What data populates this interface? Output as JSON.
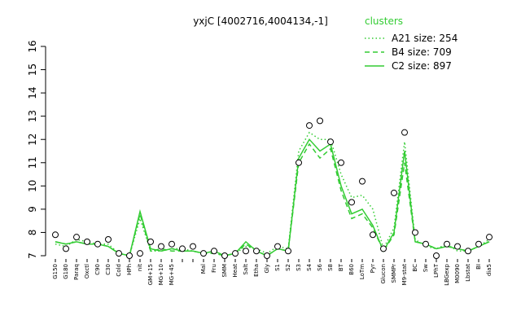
{
  "chart_data": {
    "type": "line",
    "title": "yxjC [4002716,4004134,-1]",
    "legend_title": "clusters",
    "legend_position": "top-right",
    "categories": [
      "G150",
      "G180",
      "Paraq",
      "Oxctl",
      "C90",
      "C30",
      "Cold",
      "HPh",
      "nit",
      "GM+15",
      "MG+10",
      "MG+45",
      null,
      null,
      "Mal",
      "Fru",
      "SMM",
      "Heat",
      "Salt",
      "Etha",
      "Gly",
      "S1",
      "S2",
      "S3",
      "S4",
      "S6",
      "S8",
      "BT",
      "B60",
      "LoTm",
      "Pyr",
      "Glucon",
      "SMMPr",
      "M9-stat",
      "BC",
      "Sw",
      "LPhT",
      "LBGexp",
      "M0090",
      "Lbstat",
      "BI",
      "dia5"
    ],
    "series": [
      {
        "name": "A21 size: 254",
        "color": "#33cc33",
        "dash": "dotted",
        "values": [
          7.5,
          7.4,
          7.7,
          7.6,
          7.5,
          7.5,
          7.1,
          7.0,
          8.6,
          7.2,
          7.2,
          7.3,
          7.3,
          7.2,
          7.1,
          7.2,
          7.0,
          7.1,
          7.4,
          7.3,
          7.1,
          7.4,
          7.3,
          11.5,
          12.3,
          12.0,
          12.0,
          10.5,
          9.5,
          9.6,
          9.0,
          7.3,
          8.2,
          11.9,
          7.7,
          7.4,
          7.3,
          7.5,
          7.2,
          7.2,
          7.4,
          7.7
        ]
      },
      {
        "name": "B4 size: 709",
        "color": "#33cc33",
        "dash": "dashed",
        "values": [
          7.6,
          7.5,
          7.6,
          7.5,
          7.5,
          7.4,
          7.1,
          7.0,
          8.8,
          7.2,
          7.3,
          7.2,
          7.2,
          7.2,
          7.1,
          7.1,
          7.0,
          7.1,
          7.5,
          7.2,
          7.0,
          7.3,
          7.2,
          11.0,
          11.8,
          11.2,
          11.6,
          9.8,
          8.6,
          8.8,
          8.2,
          7.2,
          7.9,
          11.0,
          7.6,
          7.5,
          7.3,
          7.4,
          7.3,
          7.2,
          7.4,
          7.6
        ]
      },
      {
        "name": "C2 size: 897",
        "color": "#33cc33",
        "dash": "solid",
        "values": [
          7.6,
          7.5,
          7.6,
          7.5,
          7.5,
          7.4,
          7.1,
          7.0,
          8.9,
          7.3,
          7.2,
          7.3,
          7.2,
          7.2,
          7.1,
          7.2,
          7.0,
          7.1,
          7.6,
          7.2,
          7.0,
          7.3,
          7.2,
          11.2,
          12.0,
          11.5,
          11.8,
          10.0,
          8.8,
          9.0,
          8.3,
          7.2,
          8.0,
          11.5,
          7.6,
          7.5,
          7.3,
          7.4,
          7.3,
          7.2,
          7.4,
          7.6
        ]
      }
    ],
    "points": [
      7.9,
      7.3,
      7.8,
      7.6,
      7.5,
      7.7,
      7.1,
      7.0,
      7.1,
      7.6,
      7.4,
      7.5,
      7.3,
      7.4,
      7.1,
      7.2,
      7.0,
      7.1,
      7.2,
      7.2,
      7.0,
      7.4,
      7.2,
      11.0,
      12.6,
      12.8,
      11.9,
      11.0,
      9.3,
      10.2,
      7.9,
      7.3,
      9.7,
      12.3,
      8.0,
      7.5,
      7.0,
      7.5,
      7.4,
      7.2,
      7.5,
      7.8
    ],
    "point_color": "#000000",
    "ylim": [
      7,
      16
    ],
    "yticks": [
      7,
      8,
      9,
      10,
      11,
      12,
      13,
      14,
      15,
      16
    ]
  }
}
